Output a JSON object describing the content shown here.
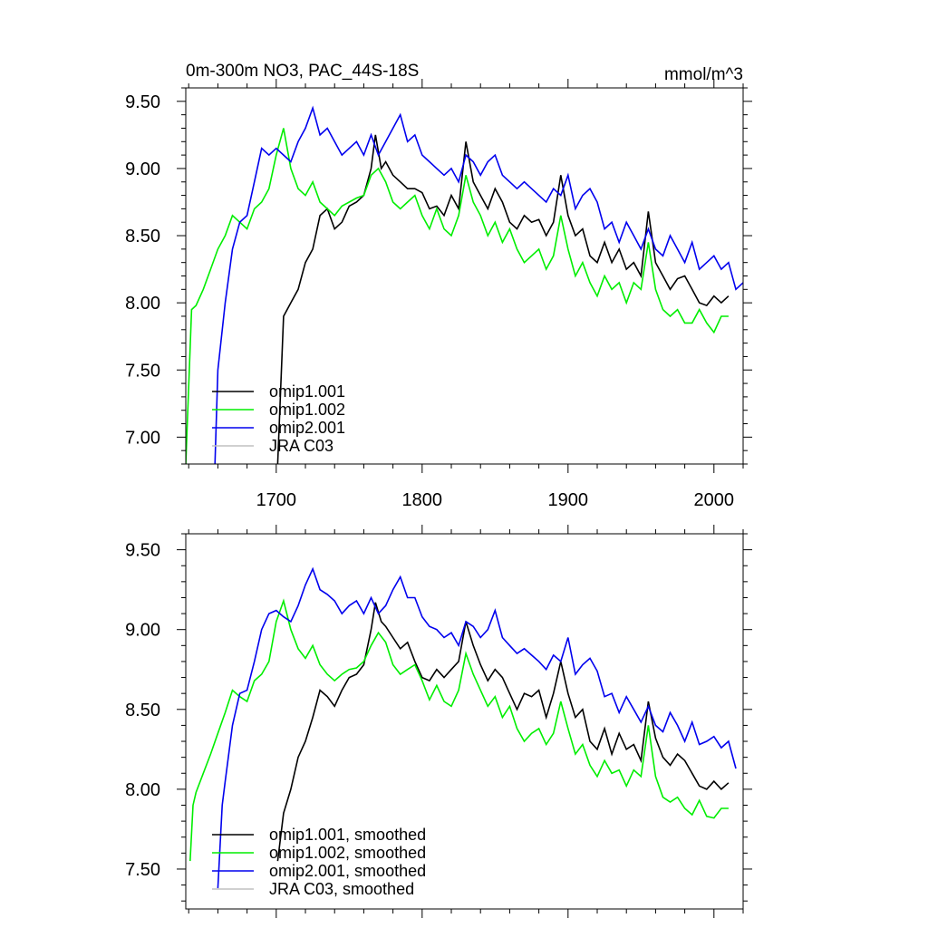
{
  "chart_data": [
    {
      "type": "line",
      "title": "0m-300m NO3, PAC_44S-18S",
      "units": "mmol/m^3",
      "xlabel": "",
      "ylabel": "",
      "xlim": [
        1638,
        2020
      ],
      "ylim": [
        6.8,
        9.6
      ],
      "x_ticks": [
        1700,
        1800,
        1900,
        2000
      ],
      "x_tick_labels": [
        "1700",
        "1800",
        "1900",
        "2000"
      ],
      "y_ticks": [
        7.0,
        7.5,
        8.0,
        8.5,
        9.0,
        9.5
      ],
      "y_tick_labels": [
        "7.00",
        "7.50",
        "8.00",
        "8.50",
        "9.00",
        "9.50"
      ],
      "legend_position": "bottom-left",
      "series": [
        {
          "name": "omip1.001",
          "color": "#000000",
          "x": [
            1701,
            1705,
            1710,
            1715,
            1720,
            1725,
            1730,
            1735,
            1740,
            1745,
            1750,
            1755,
            1760,
            1765,
            1768,
            1772,
            1775,
            1780,
            1785,
            1790,
            1795,
            1800,
            1805,
            1810,
            1815,
            1820,
            1825,
            1830,
            1835,
            1840,
            1845,
            1850,
            1855,
            1860,
            1865,
            1870,
            1875,
            1880,
            1885,
            1890,
            1895,
            1900,
            1905,
            1910,
            1915,
            1920,
            1925,
            1930,
            1935,
            1940,
            1945,
            1950,
            1955,
            1960,
            1965,
            1970,
            1975,
            1980,
            1985,
            1990,
            1995,
            2000,
            2005,
            2010
          ],
          "values": [
            6.8,
            7.9,
            8.0,
            8.1,
            8.3,
            8.4,
            8.65,
            8.7,
            8.55,
            8.6,
            8.72,
            8.75,
            8.8,
            9.0,
            9.25,
            9.0,
            9.05,
            8.95,
            8.9,
            8.85,
            8.85,
            8.82,
            8.7,
            8.72,
            8.65,
            8.8,
            8.7,
            9.2,
            8.9,
            8.8,
            8.7,
            8.85,
            8.75,
            8.6,
            8.55,
            8.65,
            8.6,
            8.62,
            8.5,
            8.6,
            8.95,
            8.65,
            8.5,
            8.55,
            8.35,
            8.3,
            8.45,
            8.3,
            8.4,
            8.25,
            8.3,
            8.2,
            8.68,
            8.3,
            8.2,
            8.1,
            8.18,
            8.2,
            8.1,
            8.0,
            7.98,
            8.05,
            8.0,
            8.05
          ]
        },
        {
          "name": "omip1.002",
          "color": "#00ee00",
          "x": [
            1638,
            1642,
            1645,
            1650,
            1655,
            1660,
            1665,
            1670,
            1675,
            1680,
            1685,
            1690,
            1695,
            1700,
            1705,
            1710,
            1715,
            1720,
            1725,
            1730,
            1735,
            1740,
            1745,
            1750,
            1755,
            1760,
            1765,
            1770,
            1775,
            1780,
            1785,
            1790,
            1795,
            1800,
            1805,
            1810,
            1815,
            1820,
            1825,
            1830,
            1835,
            1840,
            1845,
            1850,
            1855,
            1860,
            1865,
            1870,
            1875,
            1880,
            1885,
            1890,
            1895,
            1900,
            1905,
            1910,
            1915,
            1920,
            1925,
            1930,
            1935,
            1940,
            1945,
            1950,
            1955,
            1960,
            1965,
            1970,
            1975,
            1980,
            1985,
            1990,
            1995,
            2000,
            2005,
            2010
          ],
          "values": [
            6.8,
            7.95,
            7.98,
            8.1,
            8.25,
            8.4,
            8.5,
            8.65,
            8.6,
            8.55,
            8.7,
            8.75,
            8.85,
            9.1,
            9.3,
            9.0,
            8.85,
            8.8,
            8.9,
            8.75,
            8.7,
            8.65,
            8.72,
            8.75,
            8.78,
            8.8,
            8.95,
            9.0,
            8.9,
            8.75,
            8.7,
            8.75,
            8.8,
            8.65,
            8.55,
            8.7,
            8.55,
            8.5,
            8.65,
            8.95,
            8.75,
            8.65,
            8.5,
            8.6,
            8.45,
            8.55,
            8.4,
            8.3,
            8.35,
            8.4,
            8.25,
            8.35,
            8.65,
            8.4,
            8.2,
            8.3,
            8.15,
            8.05,
            8.2,
            8.1,
            8.15,
            8.0,
            8.15,
            8.1,
            8.45,
            8.1,
            7.95,
            7.9,
            7.95,
            7.85,
            7.85,
            7.95,
            7.85,
            7.78,
            7.9,
            7.9
          ]
        },
        {
          "name": "omip2.001",
          "color": "#0000ee",
          "x": [
            1658,
            1660,
            1665,
            1670,
            1675,
            1680,
            1685,
            1690,
            1695,
            1700,
            1705,
            1710,
            1715,
            1720,
            1725,
            1730,
            1735,
            1740,
            1745,
            1750,
            1755,
            1760,
            1765,
            1770,
            1775,
            1780,
            1785,
            1790,
            1795,
            1800,
            1805,
            1810,
            1815,
            1820,
            1825,
            1830,
            1835,
            1840,
            1845,
            1850,
            1855,
            1860,
            1865,
            1870,
            1875,
            1880,
            1885,
            1890,
            1895,
            1900,
            1905,
            1910,
            1915,
            1920,
            1925,
            1930,
            1935,
            1940,
            1945,
            1950,
            1955,
            1960,
            1965,
            1970,
            1975,
            1980,
            1985,
            1990,
            1995,
            2000,
            2005,
            2010,
            2015,
            2020
          ],
          "values": [
            6.8,
            7.5,
            8.0,
            8.4,
            8.6,
            8.65,
            8.9,
            9.15,
            9.1,
            9.15,
            9.1,
            9.05,
            9.2,
            9.3,
            9.45,
            9.25,
            9.3,
            9.2,
            9.1,
            9.15,
            9.2,
            9.1,
            9.25,
            9.1,
            9.2,
            9.3,
            9.4,
            9.2,
            9.25,
            9.1,
            9.05,
            9.0,
            8.95,
            9.0,
            8.9,
            9.1,
            9.05,
            8.95,
            9.05,
            9.1,
            8.95,
            8.9,
            8.85,
            8.9,
            8.85,
            8.8,
            8.75,
            8.85,
            8.8,
            8.95,
            8.7,
            8.8,
            8.85,
            8.75,
            8.55,
            8.6,
            8.45,
            8.6,
            8.5,
            8.4,
            8.55,
            8.4,
            8.35,
            8.5,
            8.4,
            8.3,
            8.45,
            8.25,
            8.3,
            8.35,
            8.25,
            8.3,
            8.1,
            8.15
          ]
        },
        {
          "name": "JRA C03",
          "color": "#c0c0c0",
          "x": [],
          "values": []
        }
      ]
    },
    {
      "type": "line",
      "title": "",
      "xlabel": "",
      "ylabel": "",
      "xlim": [
        1638,
        2020
      ],
      "ylim": [
        7.25,
        9.6
      ],
      "x_ticks": [
        1700,
        1800,
        1900,
        2000
      ],
      "x_tick_labels": [],
      "y_ticks": [
        7.5,
        8.0,
        8.5,
        9.0,
        9.5
      ],
      "y_tick_labels": [
        "7.50",
        "8.00",
        "8.50",
        "9.00",
        "9.50"
      ],
      "legend_position": "bottom-left",
      "series": [
        {
          "name": "omip1.001, smoothed",
          "color": "#000000",
          "x": [
            1701,
            1705,
            1710,
            1715,
            1720,
            1725,
            1730,
            1735,
            1740,
            1745,
            1750,
            1755,
            1760,
            1765,
            1768,
            1772,
            1775,
            1780,
            1785,
            1790,
            1795,
            1800,
            1805,
            1810,
            1815,
            1820,
            1825,
            1830,
            1835,
            1840,
            1845,
            1850,
            1855,
            1860,
            1865,
            1870,
            1875,
            1880,
            1885,
            1890,
            1895,
            1900,
            1905,
            1910,
            1915,
            1920,
            1925,
            1930,
            1935,
            1940,
            1945,
            1950,
            1955,
            1960,
            1965,
            1970,
            1975,
            1980,
            1985,
            1990,
            1995,
            2000,
            2005,
            2010
          ],
          "values": [
            7.55,
            7.85,
            8.0,
            8.2,
            8.3,
            8.45,
            8.62,
            8.58,
            8.52,
            8.62,
            8.7,
            8.72,
            8.78,
            9.0,
            9.17,
            9.05,
            9.02,
            8.95,
            8.88,
            8.92,
            8.8,
            8.7,
            8.68,
            8.75,
            8.7,
            8.75,
            8.8,
            9.05,
            8.9,
            8.78,
            8.68,
            8.75,
            8.7,
            8.6,
            8.5,
            8.6,
            8.58,
            8.62,
            8.45,
            8.6,
            8.8,
            8.6,
            8.45,
            8.5,
            8.3,
            8.25,
            8.38,
            8.22,
            8.35,
            8.25,
            8.28,
            8.18,
            8.55,
            8.32,
            8.2,
            8.15,
            8.22,
            8.18,
            8.1,
            8.02,
            8.0,
            8.05,
            8.0,
            8.04
          ]
        },
        {
          "name": "omip1.002, smoothed",
          "color": "#00ee00",
          "x": [
            1641,
            1643,
            1645,
            1650,
            1655,
            1660,
            1665,
            1670,
            1675,
            1680,
            1685,
            1690,
            1695,
            1700,
            1705,
            1710,
            1715,
            1720,
            1725,
            1730,
            1735,
            1740,
            1745,
            1750,
            1755,
            1760,
            1765,
            1770,
            1775,
            1780,
            1785,
            1790,
            1795,
            1800,
            1805,
            1810,
            1815,
            1820,
            1825,
            1830,
            1835,
            1840,
            1845,
            1850,
            1855,
            1860,
            1865,
            1870,
            1875,
            1880,
            1885,
            1890,
            1895,
            1900,
            1905,
            1910,
            1915,
            1920,
            1925,
            1930,
            1935,
            1940,
            1945,
            1950,
            1955,
            1960,
            1965,
            1970,
            1975,
            1980,
            1985,
            1990,
            1995,
            2000,
            2005,
            2010
          ],
          "values": [
            7.55,
            7.9,
            7.98,
            8.1,
            8.22,
            8.35,
            8.48,
            8.62,
            8.58,
            8.55,
            8.68,
            8.72,
            8.8,
            9.05,
            9.18,
            9.0,
            8.88,
            8.82,
            8.9,
            8.78,
            8.72,
            8.68,
            8.72,
            8.75,
            8.76,
            8.8,
            8.9,
            8.98,
            8.92,
            8.78,
            8.72,
            8.75,
            8.78,
            8.68,
            8.56,
            8.65,
            8.55,
            8.52,
            8.62,
            8.85,
            8.72,
            8.62,
            8.52,
            8.58,
            8.45,
            8.52,
            8.38,
            8.3,
            8.35,
            8.38,
            8.28,
            8.35,
            8.55,
            8.38,
            8.22,
            8.28,
            8.15,
            8.08,
            8.18,
            8.1,
            8.12,
            8.02,
            8.12,
            8.08,
            8.4,
            8.08,
            7.95,
            7.92,
            7.95,
            7.88,
            7.84,
            7.93,
            7.83,
            7.82,
            7.88,
            7.88
          ]
        },
        {
          "name": "omip2.001, smoothed",
          "color": "#0000ee",
          "x": [
            1660,
            1663,
            1665,
            1670,
            1675,
            1680,
            1685,
            1690,
            1695,
            1700,
            1705,
            1710,
            1715,
            1720,
            1725,
            1730,
            1735,
            1740,
            1745,
            1750,
            1755,
            1760,
            1765,
            1770,
            1775,
            1780,
            1785,
            1790,
            1795,
            1800,
            1805,
            1810,
            1815,
            1820,
            1825,
            1830,
            1835,
            1840,
            1845,
            1850,
            1855,
            1860,
            1865,
            1870,
            1875,
            1880,
            1885,
            1890,
            1895,
            1900,
            1905,
            1910,
            1915,
            1920,
            1925,
            1930,
            1935,
            1940,
            1945,
            1950,
            1955,
            1960,
            1965,
            1970,
            1975,
            1980,
            1985,
            1990,
            1995,
            2000,
            2005,
            2010,
            2015
          ],
          "values": [
            7.38,
            7.9,
            8.05,
            8.4,
            8.6,
            8.62,
            8.8,
            9.0,
            9.1,
            9.12,
            9.08,
            9.05,
            9.15,
            9.28,
            9.38,
            9.25,
            9.22,
            9.18,
            9.1,
            9.15,
            9.18,
            9.1,
            9.2,
            9.1,
            9.15,
            9.25,
            9.33,
            9.2,
            9.2,
            9.08,
            9.02,
            9.0,
            8.95,
            8.98,
            8.9,
            9.05,
            9.02,
            8.95,
            9.0,
            9.12,
            8.95,
            8.9,
            8.85,
            8.88,
            8.84,
            8.8,
            8.75,
            8.84,
            8.8,
            8.95,
            8.72,
            8.78,
            8.82,
            8.74,
            8.58,
            8.6,
            8.48,
            8.58,
            8.5,
            8.42,
            8.52,
            8.4,
            8.36,
            8.48,
            8.4,
            8.3,
            8.42,
            8.28,
            8.3,
            8.33,
            8.26,
            8.3,
            8.13
          ]
        },
        {
          "name": "JRA C03, smoothed",
          "color": "#c0c0c0",
          "x": [],
          "values": []
        }
      ]
    }
  ]
}
